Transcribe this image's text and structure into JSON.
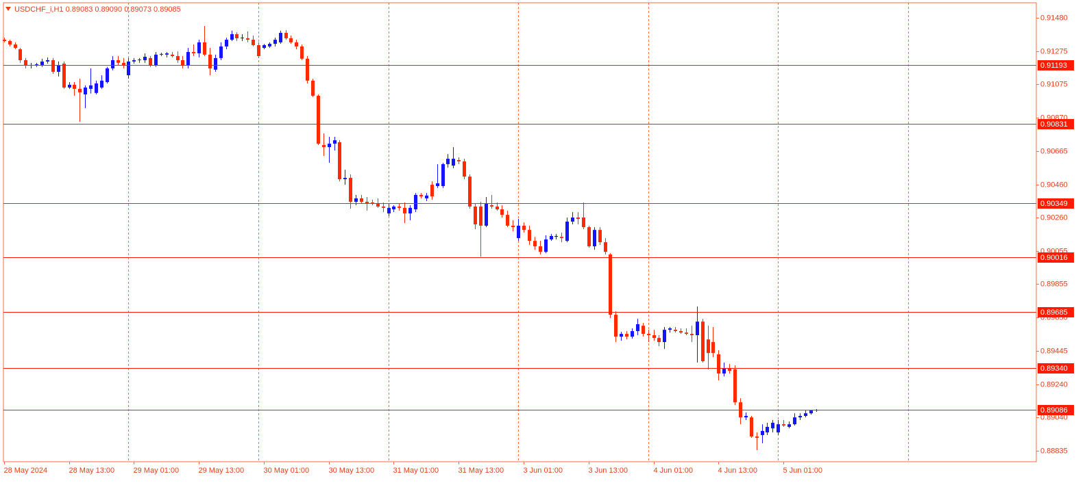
{
  "chart_data": {
    "type": "candlestick",
    "title": "USDCHF_i,H1  0.89083 0.89090 0.89073 0.89085",
    "ylim": [
      0.88768,
      0.91572
    ],
    "yticks": [
      {
        "value": 0.9148,
        "label": "0.91480"
      },
      0.91275,
      0.91075,
      {
        "value": 0.9087,
        "label": "0.90870"
      },
      0.90665,
      {
        "value": 0.9046,
        "label": "0.90460"
      },
      {
        "value": 0.9026,
        "label": "0.90260"
      },
      0.90055,
      0.89855,
      {
        "value": 0.8965,
        "label": "0.89650"
      },
      0.89445,
      {
        "value": 0.8924,
        "label": "0.89240"
      },
      {
        "value": 0.8904,
        "label": "0.89040"
      },
      0.88835
    ],
    "levels": [
      0.91193,
      0.90831,
      0.90349,
      0.90016,
      0.89685,
      {
        "value": 0.8934,
        "label": "0.89340"
      },
      0.89086
    ],
    "xlim": [
      -0.1,
      190.7
    ],
    "xticks": [
      {
        "value": 0,
        "label": "28 May 2024"
      },
      {
        "value": 12,
        "label": "28 May 13:00"
      },
      {
        "value": 24,
        "label": "29 May 01:00"
      },
      {
        "value": 36,
        "label": "29 May 13:00"
      },
      {
        "value": 48,
        "label": "30 May 01:00"
      },
      {
        "value": 60,
        "label": "30 May 13:00"
      },
      {
        "value": 72,
        "label": "31 May 01:00"
      },
      {
        "value": 84,
        "label": "31 May 13:00"
      },
      {
        "value": 96,
        "label": "3 Jun 01:00"
      },
      {
        "value": 108,
        "label": "3 Jun 13:00"
      },
      {
        "value": 120,
        "label": "4 Jun 01:00"
      },
      {
        "value": 132,
        "label": "4 Jun 13:00"
      },
      {
        "value": 144,
        "label": "5 Jun 01:00"
      }
    ],
    "xgrid": [
      23,
      47,
      71,
      95,
      119,
      143,
      167
    ],
    "bull_color": "#1414ff",
    "bear_color": "#ff2a00",
    "grid_color": "#ff6a3d",
    "level_color": "#ff1a00",
    "candles": [
      [
        0.91346,
        0.91359,
        0.9133,
        0.91338
      ],
      [
        0.91338,
        0.91346,
        0.91305,
        0.91317
      ],
      [
        0.91317,
        0.9133,
        0.91288,
        0.91296
      ],
      [
        0.91288,
        0.91296,
        0.91205,
        0.91221
      ],
      [
        0.91221,
        0.91234,
        0.91171,
        0.91188
      ],
      [
        0.91188,
        0.91205,
        0.91171,
        0.91192
      ],
      [
        0.91192,
        0.91205,
        0.9118,
        0.91196
      ],
      [
        0.91192,
        0.9123,
        0.9118,
        0.91213
      ],
      [
        0.91213,
        0.91238,
        0.912,
        0.91221
      ],
      [
        0.91221,
        0.91234,
        0.91137,
        0.9115
      ],
      [
        0.9115,
        0.91213,
        0.91121,
        0.91192
      ],
      [
        0.912,
        0.91213,
        0.91046,
        0.91054
      ],
      [
        0.91054,
        0.91087,
        0.91046,
        0.91071
      ],
      [
        0.91071,
        0.91087,
        0.91004,
        0.91046
      ],
      [
        0.91046,
        0.91108,
        0.90845,
        0.91025
      ],
      [
        0.91012,
        0.91067,
        0.90928,
        0.91054
      ],
      [
        0.91046,
        0.91171,
        0.91017,
        0.91067
      ],
      [
        0.91021,
        0.91096,
        0.91012,
        0.91079
      ],
      [
        0.91054,
        0.91129,
        0.91046,
        0.91096
      ],
      [
        0.91087,
        0.9118,
        0.91079,
        0.91171
      ],
      [
        0.91171,
        0.91246,
        0.91159,
        0.91221
      ],
      [
        0.91221,
        0.91246,
        0.91188,
        0.91205
      ],
      [
        0.91205,
        0.91234,
        0.91171,
        0.91188
      ],
      [
        0.91129,
        0.91234,
        0.91108,
        0.91213
      ],
      [
        0.91213,
        0.91234,
        0.912,
        0.91221
      ],
      [
        0.91221,
        0.91234,
        0.91205,
        0.91225
      ],
      [
        0.91221,
        0.91263,
        0.91205,
        0.91242
      ],
      [
        0.91234,
        0.91246,
        0.9118,
        0.91188
      ],
      [
        0.91188,
        0.91271,
        0.9118,
        0.91255
      ],
      [
        0.91255,
        0.91267,
        0.91246,
        0.91259
      ],
      [
        0.91255,
        0.91271,
        0.91238,
        0.91263
      ],
      [
        0.91255,
        0.91271,
        0.91238,
        0.91246
      ],
      [
        0.91246,
        0.91275,
        0.91205,
        0.91221
      ],
      [
        0.91221,
        0.91246,
        0.91171,
        0.91188
      ],
      [
        0.91188,
        0.91296,
        0.91171,
        0.91271
      ],
      [
        0.91271,
        0.91317,
        0.91246,
        0.91263
      ],
      [
        0.91263,
        0.91346,
        0.91238,
        0.9133
      ],
      [
        0.9133,
        0.9143,
        0.91246,
        0.91255
      ],
      [
        0.91255,
        0.91296,
        0.91129,
        0.91171
      ],
      [
        0.91163,
        0.91255,
        0.9115,
        0.91234
      ],
      [
        0.91234,
        0.9133,
        0.91221,
        0.91305
      ],
      [
        0.91305,
        0.91359,
        0.91288,
        0.91346
      ],
      [
        0.91346,
        0.91401,
        0.91338,
        0.9138
      ],
      [
        0.9138,
        0.91392,
        0.91338,
        0.91355
      ],
      [
        0.91355,
        0.9138,
        0.91338,
        0.91359
      ],
      [
        0.91355,
        0.91397,
        0.9133,
        0.91346
      ],
      [
        0.91346,
        0.91372,
        0.91305,
        0.91313
      ],
      [
        0.91313,
        0.9133,
        0.91234,
        0.91246
      ],
      [
        0.91296,
        0.91321,
        0.91288,
        0.91313
      ],
      [
        0.91305,
        0.9133,
        0.91296,
        0.91321
      ],
      [
        0.91321,
        0.91359,
        0.91305,
        0.91346
      ],
      [
        0.9133,
        0.91401,
        0.91321,
        0.91388
      ],
      [
        0.91388,
        0.91405,
        0.91346,
        0.91355
      ],
      [
        0.91355,
        0.91372,
        0.91321,
        0.9133
      ],
      [
        0.9133,
        0.91346,
        0.91288,
        0.91305
      ],
      [
        0.91305,
        0.91317,
        0.91221,
        0.9123
      ],
      [
        0.9123,
        0.91246,
        0.91079,
        0.91096
      ],
      [
        0.91096,
        0.91108,
        0.90996,
        0.91004
      ],
      [
        0.91004,
        0.91012,
        0.90703,
        0.90711
      ],
      [
        0.90703,
        0.90774,
        0.90636,
        0.9069
      ],
      [
        0.9069,
        0.90753,
        0.90594,
        0.90711
      ],
      [
        0.90711,
        0.90753,
        0.90669,
        0.90732
      ],
      [
        0.9072,
        0.90732,
        0.90481,
        0.90494
      ],
      [
        0.90494,
        0.90552,
        0.9046,
        0.90502
      ],
      [
        0.90502,
        0.90523,
        0.90314,
        0.90356
      ],
      [
        0.90356,
        0.90398,
        0.90335,
        0.90377
      ],
      [
        0.90377,
        0.90398,
        0.90344,
        0.90356
      ],
      [
        0.90356,
        0.90385,
        0.90302,
        0.90344
      ],
      [
        0.90352,
        0.90369,
        0.90335,
        0.90344
      ],
      [
        0.90344,
        0.90377,
        0.90319,
        0.90327
      ],
      [
        0.90327,
        0.90352,
        0.90293,
        0.90319
      ],
      [
        0.90285,
        0.90344,
        0.90268,
        0.90319
      ],
      [
        0.9031,
        0.90335,
        0.90293,
        0.90327
      ],
      [
        0.90327,
        0.90344,
        0.90302,
        0.90319
      ],
      [
        0.90319,
        0.90352,
        0.90226,
        0.90285
      ],
      [
        0.90285,
        0.90335,
        0.90243,
        0.90319
      ],
      [
        0.9031,
        0.9041,
        0.90293,
        0.90398
      ],
      [
        0.90398,
        0.9041,
        0.90377,
        0.90389
      ],
      [
        0.90377,
        0.9041,
        0.9036,
        0.90394
      ],
      [
        0.9046,
        0.90481,
        0.90369,
        0.90389
      ],
      [
        0.90452,
        0.90586,
        0.9044,
        0.90469
      ],
      [
        0.90452,
        0.90594,
        0.9044,
        0.90586
      ],
      [
        0.90586,
        0.90648,
        0.90565,
        0.90619
      ],
      [
        0.90577,
        0.9069,
        0.90561,
        0.90619
      ],
      [
        0.90611,
        0.90628,
        0.90586,
        0.90603
      ],
      [
        0.90603,
        0.90619,
        0.90494,
        0.9051
      ],
      [
        0.9051,
        0.90523,
        0.90314,
        0.90327
      ],
      [
        0.90327,
        0.90344,
        0.90189,
        0.90218
      ],
      [
        0.90327,
        0.90356,
        0.90021,
        0.9021
      ],
      [
        0.9021,
        0.90385,
        0.90201,
        0.90344
      ],
      [
        0.90335,
        0.90398,
        0.90314,
        0.90327
      ],
      [
        0.90327,
        0.90352,
        0.90302,
        0.9031
      ],
      [
        0.9031,
        0.90335,
        0.9026,
        0.90276
      ],
      [
        0.90276,
        0.90302,
        0.90201,
        0.9021
      ],
      [
        0.9021,
        0.90243,
        0.90176,
        0.90201
      ],
      [
        0.90134,
        0.90251,
        0.90117,
        0.9021
      ],
      [
        0.9021,
        0.9023,
        0.90168,
        0.90184
      ],
      [
        0.90184,
        0.9021,
        0.90092,
        0.90117
      ],
      [
        0.90117,
        0.90142,
        0.90063,
        0.90084
      ],
      [
        0.90084,
        0.90117,
        0.90034,
        0.9005
      ],
      [
        0.9005,
        0.90151,
        0.90042,
        0.90126
      ],
      [
        0.90126,
        0.90159,
        0.90117,
        0.90147
      ],
      [
        0.90142,
        0.90159,
        0.90126,
        0.90147
      ],
      [
        0.90142,
        0.90168,
        0.90109,
        0.90134
      ],
      [
        0.90117,
        0.9026,
        0.90109,
        0.90235
      ],
      [
        0.90235,
        0.90293,
        0.90218,
        0.9026
      ],
      [
        0.9026,
        0.90293,
        0.90218,
        0.90251
      ],
      [
        0.9026,
        0.90352,
        0.90189,
        0.90201
      ],
      [
        0.90201,
        0.9021,
        0.90076,
        0.90084
      ],
      [
        0.90084,
        0.90201,
        0.90063,
        0.90184
      ],
      [
        0.90184,
        0.90201,
        0.90092,
        0.90109
      ],
      [
        0.90109,
        0.90134,
        0.90034,
        0.9005
      ],
      [
        0.90034,
        0.90042,
        0.89645,
        0.89666
      ],
      [
        0.89666,
        0.89687,
        0.89499,
        0.89532
      ],
      [
        0.89532,
        0.89562,
        0.89507,
        0.89549
      ],
      [
        0.89549,
        0.89566,
        0.89515,
        0.89532
      ],
      [
        0.89532,
        0.89583,
        0.8952,
        0.89566
      ],
      [
        0.89566,
        0.89641,
        0.89541,
        0.89608
      ],
      [
        0.89599,
        0.89616,
        0.89532,
        0.89549
      ],
      [
        0.89549,
        0.89574,
        0.89499,
        0.89541
      ],
      [
        0.89541,
        0.89574,
        0.89507,
        0.89524
      ],
      [
        0.89524,
        0.89541,
        0.89474,
        0.89499
      ],
      [
        0.89499,
        0.89591,
        0.89457,
        0.89574
      ],
      [
        0.89574,
        0.89591,
        0.89557,
        0.89583
      ],
      [
        0.89574,
        0.89591,
        0.89557,
        0.89566
      ],
      [
        0.89566,
        0.89583,
        0.89549,
        0.89557
      ],
      [
        0.89557,
        0.89583,
        0.89541,
        0.89549
      ],
      [
        0.89549,
        0.89599,
        0.89499,
        0.89541
      ],
      [
        0.89541,
        0.89716,
        0.89374,
        0.89624
      ],
      [
        0.89624,
        0.89641,
        0.89374,
        0.89382
      ],
      [
        0.89515,
        0.89599,
        0.89332,
        0.89432
      ],
      [
        0.89499,
        0.89591,
        0.89407,
        0.89432
      ],
      [
        0.89424,
        0.89449,
        0.89265,
        0.89307
      ],
      [
        0.89307,
        0.89374,
        0.89289,
        0.8934
      ],
      [
        0.8934,
        0.89365,
        0.89307,
        0.89323
      ],
      [
        0.89332,
        0.89357,
        0.89114,
        0.89131
      ],
      [
        0.89131,
        0.89156,
        0.88997,
        0.89039
      ],
      [
        0.89039,
        0.89069,
        0.89023,
        0.89048
      ],
      [
        0.89039,
        0.89048,
        0.88914,
        0.88922
      ],
      [
        0.88922,
        0.88947,
        0.88839,
        0.88914
      ],
      [
        0.88931,
        0.88997,
        0.88881,
        0.88956
      ],
      [
        0.88947,
        0.89006,
        0.88931,
        0.88981
      ],
      [
        0.88972,
        0.89023,
        0.88947,
        0.89006
      ],
      [
        0.88947,
        0.89023,
        0.88931,
        0.88997
      ],
      [
        0.88997,
        0.89023,
        0.88981,
        0.88989
      ],
      [
        0.88981,
        0.89014,
        0.88972,
        0.88997
      ],
      [
        0.88997,
        0.89064,
        0.88989,
        0.89039
      ],
      [
        0.89039,
        0.89064,
        0.89023,
        0.89048
      ],
      [
        0.89048,
        0.89081,
        0.89039,
        0.89064
      ],
      [
        0.89064,
        0.89077,
        0.89056,
        0.89081
      ],
      [
        0.89083,
        0.8909,
        0.89073,
        0.89085
      ]
    ]
  }
}
